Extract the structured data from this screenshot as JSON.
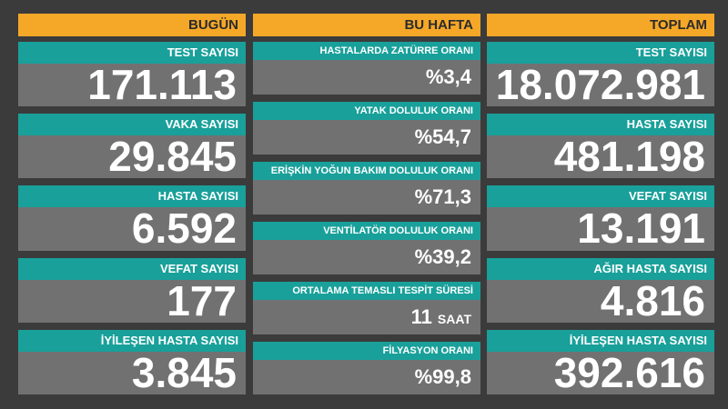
{
  "columns": [
    {
      "title": "BUGÜN",
      "items": [
        {
          "label": "TEST SAYISI",
          "value": "171.113"
        },
        {
          "label": "VAKA SAYISI",
          "value": "29.845"
        },
        {
          "label": "HASTA SAYISI",
          "value": "6.592"
        },
        {
          "label": "VEFAT SAYISI",
          "value": "177"
        },
        {
          "label": "İYİLEŞEN HASTA SAYISI",
          "value": "3.845"
        }
      ]
    },
    {
      "title": "BU HAFTA",
      "items": [
        {
          "label": "HASTALARDA ZATÜRRE ORANI",
          "value": "%3,4"
        },
        {
          "label": "YATAK DOLULUK ORANI",
          "value": "%54,7"
        },
        {
          "label": "ERİŞKİN YOĞUN BAKIM DOLULUK ORANI",
          "value": "%71,3"
        },
        {
          "label": "VENTİLATÖR DOLULUK ORANI",
          "value": "%39,2"
        },
        {
          "label": "ORTALAMA TEMASLI TESPİT SÜRESİ",
          "value": "11",
          "unit": "SAAT"
        },
        {
          "label": "FİLYASYON ORANI",
          "value": "%99,8"
        }
      ]
    },
    {
      "title": "TOPLAM",
      "items": [
        {
          "label": "TEST SAYISI",
          "value": "18.072.981"
        },
        {
          "label": "HASTA SAYISI",
          "value": "481.198"
        },
        {
          "label": "VEFAT SAYISI",
          "value": "13.191"
        },
        {
          "label": "AĞIR HASTA SAYISI",
          "value": "4.816"
        },
        {
          "label": "İYİLEŞEN HASTA SAYISI",
          "value": "392.616"
        }
      ]
    }
  ]
}
